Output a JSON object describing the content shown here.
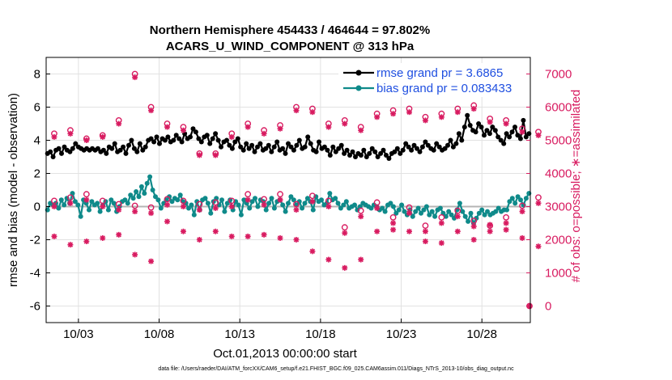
{
  "chart_data": {
    "type": "line",
    "title": "Northern Hemisphere 454433 / 464644 = 97.802%",
    "subtitle": "ACARS_U_WIND_COMPONENT @ 313 hPa",
    "xlabel": "Oct.01,2013 00:00:00 start",
    "ylabel": "rmse and bias (model - observation)",
    "ylabel_right": "# of obs: o=possible; ∗=assimilated",
    "footnote": "data file: /Users/raeder/DAI/ATM_forcXX/CAM6_setup/f.e21.FHIST_BGC.f09_025.CAM6assim.011/Diags_NTrS_2013-10/obs_diag_output.nc",
    "x_tick_labels": [
      "10/03",
      "10/08",
      "10/13",
      "10/18",
      "10/23",
      "10/28"
    ],
    "x_tick_days": [
      2,
      7,
      12,
      17,
      22,
      27
    ],
    "xlim_days": [
      0,
      30
    ],
    "ylim": [
      -7,
      9
    ],
    "y_ticks": [
      -6,
      -4,
      -2,
      0,
      2,
      4,
      6,
      8
    ],
    "ylim_right": [
      -500,
      7500
    ],
    "y_ticks_right": [
      0,
      1000,
      2000,
      3000,
      4000,
      5000,
      6000,
      7000
    ],
    "grid": true,
    "legend_position": "top-right",
    "colors": {
      "rmse": "#000000",
      "bias": "#0f8a8a",
      "obs": "#d81b60",
      "legend_text": "#1f4fe0",
      "zero_line": "#b4b4b4",
      "grid": "#e2e2e2"
    },
    "samples_per_day": 4,
    "series": [
      {
        "name": "rmse grand pr = 3.6865",
        "values": [
          3.2,
          3.3,
          3.0,
          3.4,
          3.5,
          3.2,
          3.6,
          3.4,
          3.3,
          3.5,
          3.8,
          3.6,
          3.5,
          3.4,
          3.5,
          3.4,
          3.5,
          3.4,
          3.5,
          3.3,
          3.4,
          3.2,
          3.6,
          3.5,
          3.8,
          3.3,
          3.4,
          3.6,
          3.2,
          3.7,
          4.0,
          3.5,
          3.3,
          3.8,
          3.4,
          3.6,
          4.0,
          4.1,
          3.9,
          4.2,
          3.8,
          4.1,
          4.0,
          4.2,
          3.9,
          4.0,
          4.3,
          4.1,
          3.9,
          4.4,
          4.1,
          4.2,
          4.7,
          4.5,
          4.1,
          3.9,
          4.2,
          4.3,
          3.8,
          4.1,
          4.4,
          4.0,
          3.6,
          3.9,
          4.0,
          3.7,
          3.5,
          3.9,
          4.1,
          3.6,
          3.4,
          3.8,
          3.5,
          3.7,
          3.3,
          3.6,
          3.8,
          3.4,
          3.5,
          3.7,
          3.3,
          3.6,
          3.9,
          3.4,
          3.5,
          3.2,
          3.8,
          3.6,
          3.4,
          3.7,
          4.0,
          3.5,
          3.6,
          4.2,
          3.8,
          3.4,
          3.3,
          3.9,
          3.5,
          3.6,
          3.4,
          3.1,
          3.6,
          3.3,
          3.5,
          3.7,
          3.2,
          3.4,
          3.1,
          3.3,
          3.0,
          3.2,
          3.1,
          3.4,
          3.0,
          3.2,
          3.5,
          3.3,
          3.0,
          3.2,
          3.4,
          3.1,
          2.9,
          3.2,
          3.3,
          3.5,
          3.2,
          3.4,
          3.8,
          3.6,
          3.4,
          3.7,
          3.5,
          3.3,
          3.6,
          3.9,
          3.7,
          3.5,
          3.4,
          3.8,
          3.6,
          3.4,
          3.5,
          3.7,
          4.0,
          3.6,
          3.8,
          4.4,
          4.0,
          4.8,
          5.5,
          4.9,
          4.6,
          4.5,
          5.0,
          4.8,
          4.3,
          4.6,
          4.4,
          4.8,
          4.6,
          4.2,
          4.0,
          3.8,
          4.4,
          4.2,
          4.5,
          4.8,
          4.3,
          4.1,
          5.2,
          4.2,
          4.4
        ]
      },
      {
        "name": "bias grand pr = 0.083433",
        "values": [
          -0.2,
          0.2,
          0.1,
          0.2,
          -0.1,
          0.4,
          0.1,
          0.5,
          0.2,
          0.8,
          0.3,
          0.1,
          -0.6,
          0.4,
          0.2,
          -0.2,
          0.3,
          0.1,
          0.2,
          -0.3,
          0.1,
          0.3,
          -0.2,
          0.4,
          0.2,
          -0.3,
          0.0,
          0.3,
          0.4,
          0.2,
          0.7,
          0.5,
          0.9,
          0.6,
          1.2,
          0.8,
          1.4,
          1.8,
          1.0,
          0.6,
          0.4,
          -0.1,
          0.2,
          0.4,
          0.6,
          0.3,
          0.5,
          0.4,
          0.7,
          0.3,
          0.2,
          -0.1,
          0.1,
          -0.5,
          0.3,
          -0.2,
          0.4,
          0.5,
          0.2,
          -0.4,
          0.3,
          0.5,
          0.1,
          0.4,
          -0.3,
          0.2,
          0.4,
          -0.2,
          0.3,
          0.1,
          -0.5,
          0.4,
          0.2,
          -0.1,
          0.3,
          0.5,
          0.0,
          0.4,
          0.3,
          -0.2,
          0.2,
          0.5,
          -0.1,
          0.3,
          0.4,
          0.1,
          -0.3,
          0.2,
          0.6,
          0.4,
          0.1,
          0.3,
          -0.1,
          0.2,
          0.5,
          0.3,
          -0.2,
          0.6,
          0.3,
          0.4,
          0.1,
          0.2,
          0.8,
          0.4,
          0.5,
          0.2,
          -0.1,
          0.1,
          0.3,
          -0.1,
          0.0,
          0.1,
          -0.2,
          0.0,
          0.2,
          0.1,
          0.0,
          -0.1,
          0.1,
          0.0,
          -0.2,
          -0.1,
          -0.3,
          0.1,
          0.2,
          0.0,
          -0.4,
          -0.2,
          0.1,
          -0.3,
          -0.5,
          -0.2,
          -0.6,
          -0.3,
          -0.1,
          -0.4,
          -0.2,
          0.0,
          -0.5,
          -0.3,
          -0.6,
          -0.2,
          -0.1,
          -0.4,
          -0.6,
          -0.3,
          -0.5,
          -0.7,
          -0.2,
          0.2,
          -0.3,
          -0.6,
          -0.9,
          -0.4,
          -1.0,
          -0.7,
          -0.4,
          -0.2,
          -0.5,
          -0.3,
          -0.5,
          -0.4,
          -0.3,
          -0.1,
          -0.3,
          -0.2,
          -0.2,
          0.3,
          0.5,
          0.2,
          0.6,
          0.4,
          0.1,
          0.5,
          0.8
        ]
      }
    ],
    "obs_counts": {
      "day_offset": 0.5,
      "possible": [
        5200,
        5300,
        5050,
        5150,
        5600,
        7000,
        6000,
        5500,
        5400,
        4600,
        4600,
        5200,
        5500,
        5300,
        5450,
        6000,
        5950,
        5500,
        5600,
        5400,
        5800,
        5900,
        5950,
        5700,
        5800,
        5950,
        6050,
        5650,
        5600,
        5350,
        5250
      ],
      "assimilated": [
        5100,
        5200,
        5000,
        5100,
        5500,
        6900,
        5900,
        5400,
        5300,
        4550,
        4550,
        5100,
        5400,
        5200,
        5350,
        5900,
        5850,
        5400,
        5500,
        5300,
        5700,
        5800,
        5850,
        5600,
        5700,
        5850,
        5950,
        5550,
        5500,
        5250,
        5150
      ],
      "assimilated_low": [
        2100,
        1850,
        1950,
        2050,
        2150,
        1550,
        1350,
        2550,
        2250,
        2000,
        2250,
        2100,
        2100,
        2150,
        2050,
        2000,
        1650,
        1400,
        1150,
        1400,
        2250,
        2300,
        2250,
        1950,
        1900,
        2250,
        2000,
        2450,
        2300,
        2050,
        1800
      ],
      "possible_mid": [
        3100,
        3200,
        3300,
        3100,
        3000,
        2950,
        2900,
        3150,
        3100,
        3000,
        3050,
        3100,
        3300,
        3150,
        3300,
        3000,
        3250,
        3100,
        2300,
        2800,
        3050,
        2600,
        2900,
        2350,
        2600,
        2800,
        2500,
        2350,
        2600,
        2950,
        3200
      ]
    }
  }
}
